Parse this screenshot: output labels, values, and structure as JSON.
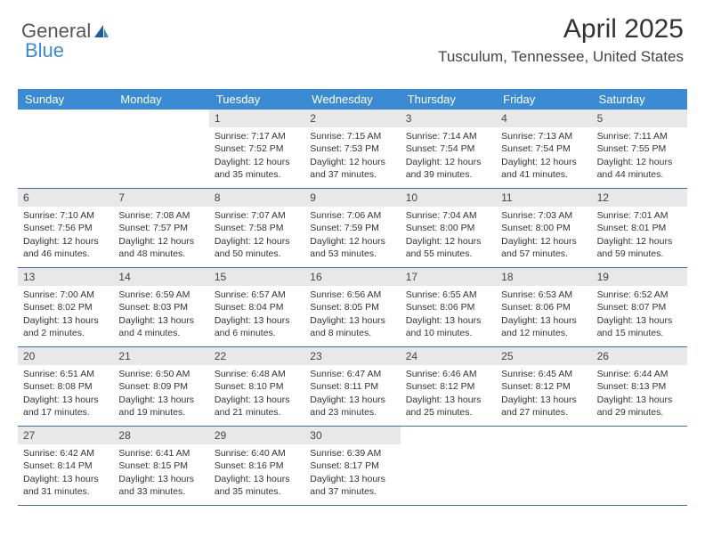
{
  "logo": {
    "text_general": "General",
    "text_blue": "Blue"
  },
  "header": {
    "title": "April 2025",
    "location": "Tusculum, Tennessee, United States"
  },
  "colors": {
    "header_bar": "#3b8bd4",
    "daynum_bg": "#e8e8e8",
    "week_border": "#3b6fa0",
    "text": "#333333"
  },
  "day_names": [
    "Sunday",
    "Monday",
    "Tuesday",
    "Wednesday",
    "Thursday",
    "Friday",
    "Saturday"
  ],
  "weeks": [
    [
      null,
      null,
      {
        "day": "1",
        "sunrise": "Sunrise: 7:17 AM",
        "sunset": "Sunset: 7:52 PM",
        "daylight1": "Daylight: 12 hours",
        "daylight2": "and 35 minutes."
      },
      {
        "day": "2",
        "sunrise": "Sunrise: 7:15 AM",
        "sunset": "Sunset: 7:53 PM",
        "daylight1": "Daylight: 12 hours",
        "daylight2": "and 37 minutes."
      },
      {
        "day": "3",
        "sunrise": "Sunrise: 7:14 AM",
        "sunset": "Sunset: 7:54 PM",
        "daylight1": "Daylight: 12 hours",
        "daylight2": "and 39 minutes."
      },
      {
        "day": "4",
        "sunrise": "Sunrise: 7:13 AM",
        "sunset": "Sunset: 7:54 PM",
        "daylight1": "Daylight: 12 hours",
        "daylight2": "and 41 minutes."
      },
      {
        "day": "5",
        "sunrise": "Sunrise: 7:11 AM",
        "sunset": "Sunset: 7:55 PM",
        "daylight1": "Daylight: 12 hours",
        "daylight2": "and 44 minutes."
      }
    ],
    [
      {
        "day": "6",
        "sunrise": "Sunrise: 7:10 AM",
        "sunset": "Sunset: 7:56 PM",
        "daylight1": "Daylight: 12 hours",
        "daylight2": "and 46 minutes."
      },
      {
        "day": "7",
        "sunrise": "Sunrise: 7:08 AM",
        "sunset": "Sunset: 7:57 PM",
        "daylight1": "Daylight: 12 hours",
        "daylight2": "and 48 minutes."
      },
      {
        "day": "8",
        "sunrise": "Sunrise: 7:07 AM",
        "sunset": "Sunset: 7:58 PM",
        "daylight1": "Daylight: 12 hours",
        "daylight2": "and 50 minutes."
      },
      {
        "day": "9",
        "sunrise": "Sunrise: 7:06 AM",
        "sunset": "Sunset: 7:59 PM",
        "daylight1": "Daylight: 12 hours",
        "daylight2": "and 53 minutes."
      },
      {
        "day": "10",
        "sunrise": "Sunrise: 7:04 AM",
        "sunset": "Sunset: 8:00 PM",
        "daylight1": "Daylight: 12 hours",
        "daylight2": "and 55 minutes."
      },
      {
        "day": "11",
        "sunrise": "Sunrise: 7:03 AM",
        "sunset": "Sunset: 8:00 PM",
        "daylight1": "Daylight: 12 hours",
        "daylight2": "and 57 minutes."
      },
      {
        "day": "12",
        "sunrise": "Sunrise: 7:01 AM",
        "sunset": "Sunset: 8:01 PM",
        "daylight1": "Daylight: 12 hours",
        "daylight2": "and 59 minutes."
      }
    ],
    [
      {
        "day": "13",
        "sunrise": "Sunrise: 7:00 AM",
        "sunset": "Sunset: 8:02 PM",
        "daylight1": "Daylight: 13 hours",
        "daylight2": "and 2 minutes."
      },
      {
        "day": "14",
        "sunrise": "Sunrise: 6:59 AM",
        "sunset": "Sunset: 8:03 PM",
        "daylight1": "Daylight: 13 hours",
        "daylight2": "and 4 minutes."
      },
      {
        "day": "15",
        "sunrise": "Sunrise: 6:57 AM",
        "sunset": "Sunset: 8:04 PM",
        "daylight1": "Daylight: 13 hours",
        "daylight2": "and 6 minutes."
      },
      {
        "day": "16",
        "sunrise": "Sunrise: 6:56 AM",
        "sunset": "Sunset: 8:05 PM",
        "daylight1": "Daylight: 13 hours",
        "daylight2": "and 8 minutes."
      },
      {
        "day": "17",
        "sunrise": "Sunrise: 6:55 AM",
        "sunset": "Sunset: 8:06 PM",
        "daylight1": "Daylight: 13 hours",
        "daylight2": "and 10 minutes."
      },
      {
        "day": "18",
        "sunrise": "Sunrise: 6:53 AM",
        "sunset": "Sunset: 8:06 PM",
        "daylight1": "Daylight: 13 hours",
        "daylight2": "and 12 minutes."
      },
      {
        "day": "19",
        "sunrise": "Sunrise: 6:52 AM",
        "sunset": "Sunset: 8:07 PM",
        "daylight1": "Daylight: 13 hours",
        "daylight2": "and 15 minutes."
      }
    ],
    [
      {
        "day": "20",
        "sunrise": "Sunrise: 6:51 AM",
        "sunset": "Sunset: 8:08 PM",
        "daylight1": "Daylight: 13 hours",
        "daylight2": "and 17 minutes."
      },
      {
        "day": "21",
        "sunrise": "Sunrise: 6:50 AM",
        "sunset": "Sunset: 8:09 PM",
        "daylight1": "Daylight: 13 hours",
        "daylight2": "and 19 minutes."
      },
      {
        "day": "22",
        "sunrise": "Sunrise: 6:48 AM",
        "sunset": "Sunset: 8:10 PM",
        "daylight1": "Daylight: 13 hours",
        "daylight2": "and 21 minutes."
      },
      {
        "day": "23",
        "sunrise": "Sunrise: 6:47 AM",
        "sunset": "Sunset: 8:11 PM",
        "daylight1": "Daylight: 13 hours",
        "daylight2": "and 23 minutes."
      },
      {
        "day": "24",
        "sunrise": "Sunrise: 6:46 AM",
        "sunset": "Sunset: 8:12 PM",
        "daylight1": "Daylight: 13 hours",
        "daylight2": "and 25 minutes."
      },
      {
        "day": "25",
        "sunrise": "Sunrise: 6:45 AM",
        "sunset": "Sunset: 8:12 PM",
        "daylight1": "Daylight: 13 hours",
        "daylight2": "and 27 minutes."
      },
      {
        "day": "26",
        "sunrise": "Sunrise: 6:44 AM",
        "sunset": "Sunset: 8:13 PM",
        "daylight1": "Daylight: 13 hours",
        "daylight2": "and 29 minutes."
      }
    ],
    [
      {
        "day": "27",
        "sunrise": "Sunrise: 6:42 AM",
        "sunset": "Sunset: 8:14 PM",
        "daylight1": "Daylight: 13 hours",
        "daylight2": "and 31 minutes."
      },
      {
        "day": "28",
        "sunrise": "Sunrise: 6:41 AM",
        "sunset": "Sunset: 8:15 PM",
        "daylight1": "Daylight: 13 hours",
        "daylight2": "and 33 minutes."
      },
      {
        "day": "29",
        "sunrise": "Sunrise: 6:40 AM",
        "sunset": "Sunset: 8:16 PM",
        "daylight1": "Daylight: 13 hours",
        "daylight2": "and 35 minutes."
      },
      {
        "day": "30",
        "sunrise": "Sunrise: 6:39 AM",
        "sunset": "Sunset: 8:17 PM",
        "daylight1": "Daylight: 13 hours",
        "daylight2": "and 37 minutes."
      },
      null,
      null,
      null
    ]
  ]
}
